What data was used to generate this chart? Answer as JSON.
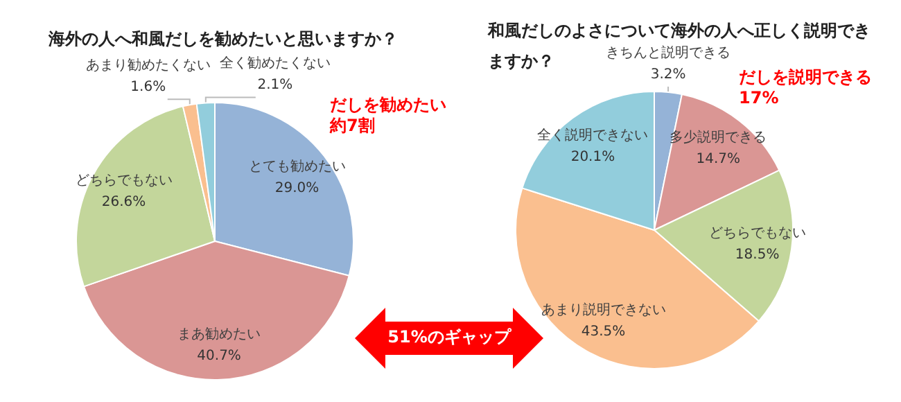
{
  "chart_data": [
    {
      "type": "pie",
      "title": "海外の人へ和風だしを勧めたいと思いますか？",
      "categories": [
        "とても勧めたい",
        "まあ勧めたい",
        "どちらでもない",
        "あまり勧めたくない",
        "全く勧めたくない"
      ],
      "values": [
        29.0,
        40.7,
        26.6,
        1.6,
        2.1
      ],
      "colors": [
        "#95b3d7",
        "#da9694",
        "#c3d69b",
        "#fabf8f",
        "#92cddc"
      ],
      "value_labels": [
        "29.0%",
        "40.7%",
        "26.6%",
        "1.6%",
        "2.1%"
      ],
      "legend": false,
      "annotations": [
        "だしを勧めたい",
        "約7割"
      ]
    },
    {
      "type": "pie",
      "title": "和風だしのよさについて海外の人へ正しく説明できますか？",
      "categories": [
        "きちんと説明できる",
        "多少説明できる",
        "どちらでもない",
        "あまり説明できない",
        "全く説明できない"
      ],
      "values": [
        3.2,
        14.7,
        18.5,
        43.5,
        20.1
      ],
      "colors": [
        "#95b3d7",
        "#da9694",
        "#c3d69b",
        "#fabf8f",
        "#92cddc"
      ],
      "value_labels": [
        "3.2%",
        "14.7%",
        "18.5%",
        "43.5%",
        "20.1%"
      ],
      "legend": false,
      "annotations": [
        "だしを説明できる",
        "17%"
      ]
    },
    {
      "type": "other",
      "annotations": [
        "51%のギャップ"
      ]
    }
  ]
}
